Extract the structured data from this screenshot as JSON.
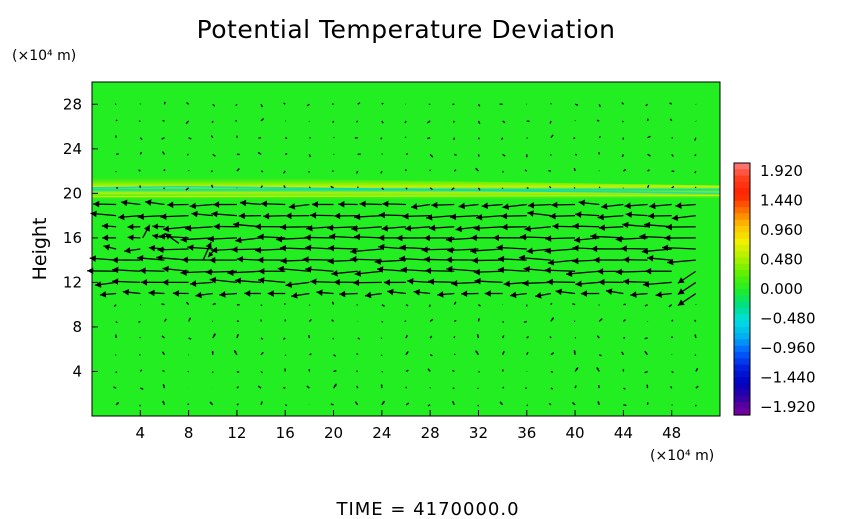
{
  "chart_data": {
    "type": "heatmap",
    "title": "Potential Temperature Deviation",
    "ylabel": "Height",
    "y_unit": "(×10⁴ m)",
    "x_unit": "(×10⁴ m)",
    "xlim": [
      0,
      52
    ],
    "ylim": [
      0,
      30
    ],
    "x_ticks": [
      "4",
      "8",
      "12",
      "16",
      "20",
      "24",
      "28",
      "32",
      "36",
      "40",
      "44",
      "48"
    ],
    "y_ticks": [
      "4",
      "8",
      "12",
      "16",
      "20",
      "24",
      "28"
    ],
    "colorbar": {
      "labels": [
        "1.920",
        "1.440",
        "0.960",
        "0.480",
        "0.000",
        "−0.480",
        "−0.960",
        "−1.440",
        "−1.920"
      ],
      "range": [
        -1.92,
        1.92
      ]
    },
    "field": "near 0.000 throughout; thin banded layer of small positive/negative deviations at height ≈ 20–22",
    "vectors": "wind arrows overlaid; strong leftward flow between heights ≈ 11 and 19",
    "time_label": "TIME = 4170000.0"
  }
}
